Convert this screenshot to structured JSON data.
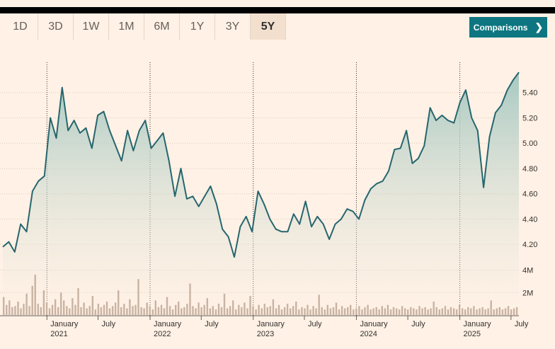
{
  "ranges": {
    "items": [
      "1D",
      "3D",
      "1W",
      "1M",
      "6M",
      "1Y",
      "3Y",
      "5Y"
    ],
    "active": "5Y"
  },
  "compare": {
    "label": "Comparisons",
    "chevron": "❯"
  },
  "colors": {
    "line": "#26666e",
    "fill_top": "#9cc4bd",
    "fill_bottom": "#fff1e5",
    "volume": "#c9b3a3",
    "accent": "#0d7680"
  },
  "chart_data": {
    "type": "line",
    "x_range": [
      "2020-07-29",
      "2025-07-29"
    ],
    "ylim": [
      4.05,
      5.6
    ],
    "y_ticks": [
      "5.40",
      "5.20",
      "5.00",
      "4.80",
      "4.60",
      "4.40",
      "4.20"
    ],
    "vol_ticks": [
      "4M",
      "2M"
    ],
    "x_ticks": [
      {
        "label": "January",
        "sub": "2021",
        "date": "2021-01-01",
        "year_line": true
      },
      {
        "label": "July",
        "sub": "",
        "date": "2021-07-01",
        "year_line": false
      },
      {
        "label": "January",
        "sub": "2022",
        "date": "2022-01-01",
        "year_line": true
      },
      {
        "label": "July",
        "sub": "",
        "date": "2022-07-01",
        "year_line": false
      },
      {
        "label": "January",
        "sub": "2023",
        "date": "2023-01-01",
        "year_line": true
      },
      {
        "label": "July",
        "sub": "",
        "date": "2023-07-01",
        "year_line": false
      },
      {
        "label": "January",
        "sub": "2024",
        "date": "2024-01-01",
        "year_line": true
      },
      {
        "label": "July",
        "sub": "",
        "date": "2024-07-01",
        "year_line": false
      },
      {
        "label": "January",
        "sub": "2025",
        "date": "2025-01-01",
        "year_line": true
      },
      {
        "label": "July",
        "sub": "",
        "date": "2025-07-01",
        "year_line": false
      }
    ],
    "price": [
      [
        "2020-07-29",
        4.18
      ],
      [
        "2020-08-19",
        4.22
      ],
      [
        "2020-09-09",
        4.14
      ],
      [
        "2020-09-30",
        4.36
      ],
      [
        "2020-10-21",
        4.3
      ],
      [
        "2020-11-11",
        4.62
      ],
      [
        "2020-12-02",
        4.7
      ],
      [
        "2020-12-23",
        4.74
      ],
      [
        "2021-01-13",
        5.2
      ],
      [
        "2021-02-03",
        5.04
      ],
      [
        "2021-02-24",
        5.44
      ],
      [
        "2021-03-17",
        5.1
      ],
      [
        "2021-04-07",
        5.18
      ],
      [
        "2021-04-28",
        5.08
      ],
      [
        "2021-05-19",
        5.12
      ],
      [
        "2021-06-09",
        4.96
      ],
      [
        "2021-06-30",
        5.22
      ],
      [
        "2021-07-21",
        5.25
      ],
      [
        "2021-08-11",
        5.1
      ],
      [
        "2021-09-01",
        4.98
      ],
      [
        "2021-09-22",
        4.86
      ],
      [
        "2021-10-13",
        5.1
      ],
      [
        "2021-11-03",
        4.94
      ],
      [
        "2021-11-24",
        5.1
      ],
      [
        "2021-12-15",
        5.18
      ],
      [
        "2022-01-05",
        4.96
      ],
      [
        "2022-01-26",
        5.02
      ],
      [
        "2022-02-16",
        5.08
      ],
      [
        "2022-03-09",
        4.86
      ],
      [
        "2022-03-30",
        4.58
      ],
      [
        "2022-04-20",
        4.8
      ],
      [
        "2022-05-11",
        4.56
      ],
      [
        "2022-06-01",
        4.58
      ],
      [
        "2022-06-22",
        4.5
      ],
      [
        "2022-07-13",
        4.58
      ],
      [
        "2022-08-03",
        4.66
      ],
      [
        "2022-08-24",
        4.52
      ],
      [
        "2022-09-14",
        4.32
      ],
      [
        "2022-10-05",
        4.26
      ],
      [
        "2022-10-26",
        4.1
      ],
      [
        "2022-11-16",
        4.34
      ],
      [
        "2022-12-07",
        4.42
      ],
      [
        "2022-12-28",
        4.3
      ],
      [
        "2023-01-18",
        4.62
      ],
      [
        "2023-02-08",
        4.52
      ],
      [
        "2023-03-01",
        4.4
      ],
      [
        "2023-03-22",
        4.32
      ],
      [
        "2023-04-12",
        4.3
      ],
      [
        "2023-05-03",
        4.3
      ],
      [
        "2023-05-24",
        4.44
      ],
      [
        "2023-06-14",
        4.36
      ],
      [
        "2023-07-05",
        4.54
      ],
      [
        "2023-07-26",
        4.34
      ],
      [
        "2023-08-16",
        4.42
      ],
      [
        "2023-09-06",
        4.36
      ],
      [
        "2023-09-27",
        4.24
      ],
      [
        "2023-10-18",
        4.36
      ],
      [
        "2023-11-08",
        4.4
      ],
      [
        "2023-11-29",
        4.48
      ],
      [
        "2023-12-20",
        4.46
      ],
      [
        "2024-01-10",
        4.4
      ],
      [
        "2024-01-31",
        4.55
      ],
      [
        "2024-02-21",
        4.64
      ],
      [
        "2024-03-13",
        4.68
      ],
      [
        "2024-04-03",
        4.7
      ],
      [
        "2024-04-24",
        4.78
      ],
      [
        "2024-05-15",
        4.95
      ],
      [
        "2024-06-05",
        4.96
      ],
      [
        "2024-06-26",
        5.1
      ],
      [
        "2024-07-17",
        4.84
      ],
      [
        "2024-08-07",
        4.88
      ],
      [
        "2024-08-28",
        4.98
      ],
      [
        "2024-09-18",
        5.28
      ],
      [
        "2024-10-09",
        5.18
      ],
      [
        "2024-10-30",
        5.22
      ],
      [
        "2024-11-20",
        5.18
      ],
      [
        "2024-12-11",
        5.16
      ],
      [
        "2025-01-01",
        5.32
      ],
      [
        "2025-01-22",
        5.42
      ],
      [
        "2025-02-12",
        5.2
      ],
      [
        "2025-03-05",
        5.1
      ],
      [
        "2025-03-26",
        4.65
      ],
      [
        "2025-04-16",
        5.05
      ],
      [
        "2025-05-07",
        5.24
      ],
      [
        "2025-05-28",
        5.3
      ],
      [
        "2025-06-18",
        5.42
      ],
      [
        "2025-07-09",
        5.5
      ],
      [
        "2025-07-29",
        5.56
      ]
    ],
    "volume": [
      1.6,
      0.9,
      1.3,
      0.7,
      0.8,
      1.2,
      0.6,
      1.0,
      1.9,
      0.8,
      2.6,
      3.6,
      1.0,
      0.7,
      2.2,
      1.1,
      0.6,
      0.9,
      1.4,
      0.7,
      2.0,
      1.3,
      0.8,
      0.6,
      1.5,
      0.9,
      2.4,
      0.7,
      1.1,
      0.6,
      0.8,
      1.7,
      0.5,
      1.0,
      0.7,
      0.9,
      1.2,
      0.6,
      0.8,
      1.1,
      2.2,
      0.7,
      1.0,
      0.6,
      1.4,
      0.8,
      0.9,
      3.2,
      0.7,
      0.6,
      1.1,
      0.8,
      0.5,
      1.3,
      0.7,
      0.9,
      0.6,
      1.6,
      0.8,
      0.5,
      0.9,
      1.2,
      0.6,
      0.7,
      1.0,
      2.8,
      0.8,
      0.6,
      1.1,
      0.7,
      0.9,
      1.5,
      0.6,
      0.8,
      0.5,
      1.0,
      0.7,
      1.9,
      0.6,
      0.8,
      1.3,
      0.5,
      0.9,
      0.7,
      1.1,
      0.6,
      1.7,
      0.8,
      0.5,
      0.9,
      0.6,
      1.0,
      0.7,
      0.8,
      1.4,
      0.6,
      0.9,
      0.5,
      0.7,
      1.0,
      0.6,
      0.8,
      1.2,
      0.5,
      0.7,
      0.6,
      0.9,
      0.5,
      0.8,
      0.6,
      1.8,
      0.7,
      0.5,
      0.9,
      0.6,
      0.7,
      1.1,
      0.5,
      0.8,
      0.6,
      0.7,
      0.9,
      0.5,
      0.6,
      0.8,
      0.5,
      0.7,
      0.9,
      0.5,
      0.6,
      0.7,
      0.5,
      0.8,
      0.6,
      0.9,
      0.5,
      0.7,
      0.6,
      0.5,
      0.8,
      0.6,
      0.5,
      0.7,
      0.6,
      0.5,
      0.8,
      0.6,
      0.7,
      0.5,
      0.6,
      1.2,
      0.7,
      0.5,
      0.6,
      0.8,
      0.5,
      0.7,
      0.6,
      0.5,
      0.9,
      0.6,
      0.5,
      0.7,
      0.6,
      0.8,
      0.5,
      0.6,
      0.7,
      0.5,
      0.6,
      1.3,
      0.5,
      0.6,
      0.7,
      0.5,
      0.6,
      0.8,
      0.5,
      0.6,
      0.7
    ]
  }
}
